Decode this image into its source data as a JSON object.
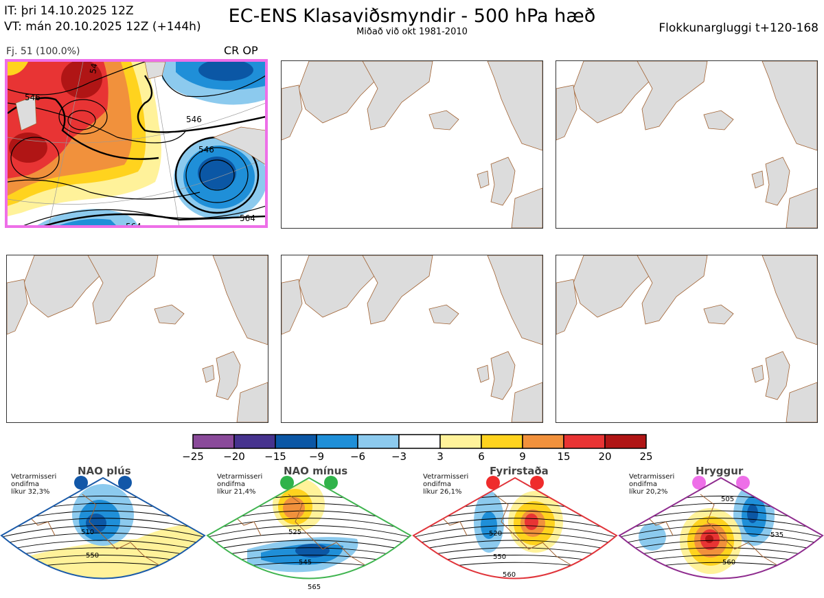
{
  "header": {
    "init_time": "IT: þri 14.10.2025 12Z",
    "valid_time": "VT: mán 20.10.2025 12Z  (+144h)",
    "title": "EC-ENS Klasaviðsmyndir - 500 hPa hæð",
    "subtitle": "Miðað við okt 1981-2010",
    "window": "Flokkunargluggi t+120-168"
  },
  "panels": [
    {
      "label": "Fj. 51 (100.0%)",
      "tag": "CR OP",
      "active": true,
      "contours": [
        "546",
        "546",
        "546",
        "564",
        "564",
        "54"
      ]
    },
    {
      "active": false
    },
    {
      "active": false
    },
    {
      "active": false
    },
    {
      "active": false
    },
    {
      "active": false
    }
  ],
  "colorbar": {
    "ticks": [
      "−25",
      "−20",
      "−15",
      "−9",
      "−6",
      "−3",
      "3",
      "6",
      "9",
      "15",
      "20",
      "25"
    ],
    "colors": [
      "#8a4a9a",
      "#46338e",
      "#0b57a5",
      "#1f8fd8",
      "#8ccaee",
      "#ffffff",
      "#fff29a",
      "#ffd31e",
      "#f1913c",
      "#e83434",
      "#b01515"
    ]
  },
  "climatology": [
    {
      "name": "NAO plús",
      "stats": [
        "Vetrarmisseri",
        "ondifma",
        "líkur 32,3%"
      ],
      "border": "#1a5aa8",
      "dot_color": "#1257a8",
      "contours": [
        "510",
        "550"
      ]
    },
    {
      "name": "NAO mínus",
      "stats": [
        "Vetrarmisseri",
        "ondifma",
        "líkur 21,4%"
      ],
      "border": "#3fb44f",
      "dot_color": "#2fb34a",
      "contours": [
        "525",
        "545",
        "565"
      ]
    },
    {
      "name": "Fyrirstaða",
      "stats": [
        "Vetrarmisseri",
        "ondifma",
        "líkur 26,1%"
      ],
      "border": "#e0343a",
      "dot_color": "#ef2c2c",
      "contours": [
        "520",
        "550",
        "560"
      ]
    },
    {
      "name": "Hryggur",
      "stats": [
        "Vetrarmisseri",
        "ondifma",
        "líkur 20,2%"
      ],
      "border": "#8e2b8e",
      "dot_color": "#ee6fe8",
      "contours": [
        "505",
        "535",
        "560"
      ]
    }
  ]
}
